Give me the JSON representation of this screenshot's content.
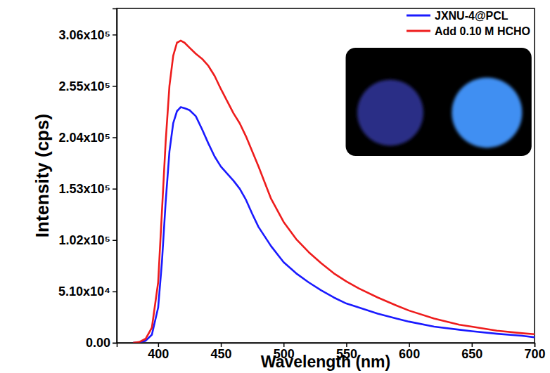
{
  "chart_data": {
    "type": "line",
    "x_label": "Wavelength (nm)",
    "y_label": "Intensity (cps)",
    "x": [
      380,
      385,
      390,
      395,
      400,
      403,
      406,
      409,
      412,
      415,
      418,
      421,
      425,
      430,
      435,
      440,
      445,
      450,
      455,
      460,
      465,
      470,
      475,
      480,
      490,
      500,
      510,
      520,
      530,
      540,
      550,
      560,
      575,
      590,
      600,
      620,
      640,
      650,
      670,
      690,
      700
    ],
    "series": [
      {
        "name": "JXNU-4@PCL",
        "color": "#1a1aff",
        "values": [
          0,
          500,
          2000,
          8000,
          35000,
          80000,
          140000,
          190000,
          218000,
          230000,
          234000,
          233000,
          231000,
          225000,
          212000,
          198000,
          185000,
          175000,
          168000,
          161000,
          153000,
          142000,
          128000,
          115000,
          96000,
          80000,
          69000,
          60000,
          52000,
          45000,
          39000,
          35000,
          29000,
          24000,
          21000,
          16000,
          13000,
          11500,
          9000,
          7000,
          5500
        ]
      },
      {
        "name": "Add 0.10 M HCHO",
        "color": "#ee1c1c",
        "values": [
          0,
          800,
          4000,
          15000,
          60000,
          130000,
          200000,
          255000,
          285000,
          298000,
          300000,
          298000,
          293000,
          287000,
          282000,
          275000,
          265000,
          252000,
          240000,
          228000,
          218000,
          205000,
          190000,
          175000,
          143000,
          120000,
          103000,
          90000,
          79000,
          69000,
          61000,
          54000,
          45000,
          37000,
          32000,
          24000,
          18000,
          16000,
          12000,
          9500,
          8500
        ]
      }
    ],
    "xlim": [
      367,
      700
    ],
    "xticks": [
      400,
      450,
      500,
      550,
      600,
      650,
      700
    ],
    "ylim": [
      0,
      332000
    ],
    "yticks": [
      {
        "value": 0,
        "label": "0.00"
      },
      {
        "value": 51000,
        "label": "5.10x10⁴"
      },
      {
        "value": 102000,
        "label": "1.02x10⁵"
      },
      {
        "value": 153000,
        "label": "1.53x10⁵"
      },
      {
        "value": 204000,
        "label": "2.04x10⁵"
      },
      {
        "value": 255000,
        "label": "2.55x10⁵"
      },
      {
        "value": 306000,
        "label": "3.06x10⁵"
      }
    ],
    "grid": false,
    "legend": "upper right"
  }
}
